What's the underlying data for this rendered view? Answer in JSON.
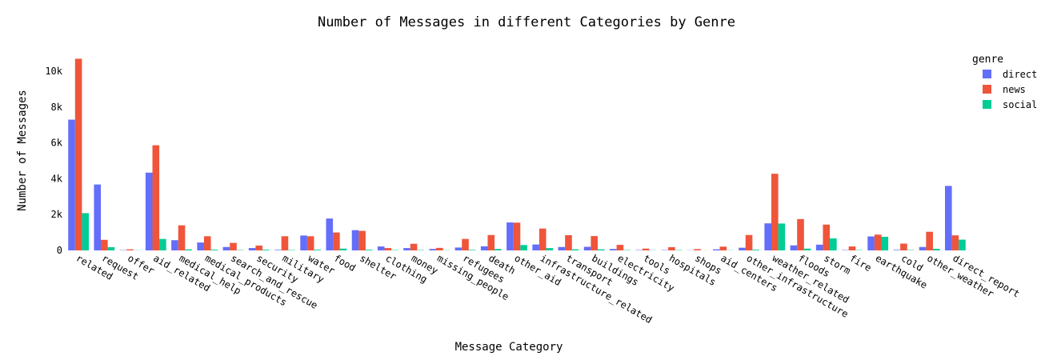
{
  "chart_data": {
    "type": "bar",
    "title": "Number of Messages in different Categories by Genre",
    "xlabel": "Message Category",
    "ylabel": "Number of Messages",
    "ylim": [
      0,
      11300
    ],
    "yticks": [
      0,
      2000,
      4000,
      6000,
      8000,
      10000
    ],
    "ytick_labels": [
      "0",
      "2k",
      "4k",
      "6k",
      "8k",
      "10k"
    ],
    "legend_title": "genre",
    "legend_position": "top-right",
    "grid": false,
    "categories": [
      "related",
      "request",
      "offer",
      "aid_related",
      "medical_help",
      "medical_products",
      "search_and_rescue",
      "security",
      "military",
      "water",
      "food",
      "shelter",
      "clothing",
      "money",
      "missing_people",
      "refugees",
      "death",
      "other_aid",
      "infrastructure_related",
      "transport",
      "buildings",
      "electricity",
      "tools",
      "hospitals",
      "shops",
      "aid_centers",
      "other_infrastructure",
      "weather_related",
      "floods",
      "storm",
      "fire",
      "earthquake",
      "cold",
      "other_weather",
      "direct_report"
    ],
    "series": [
      {
        "name": "direct",
        "color": "#636efa",
        "values": [
          7300,
          3680,
          20,
          4340,
          570,
          440,
          190,
          130,
          30,
          830,
          1780,
          1130,
          220,
          130,
          80,
          160,
          230,
          1560,
          330,
          190,
          200,
          80,
          20,
          20,
          10,
          60,
          150,
          1510,
          280,
          320,
          20,
          780,
          30,
          190,
          3600
        ]
      },
      {
        "name": "news",
        "color": "#ef553b",
        "values": [
          10700,
          590,
          60,
          5870,
          1400,
          790,
          420,
          270,
          790,
          790,
          1000,
          1090,
          130,
          370,
          140,
          640,
          860,
          1550,
          1220,
          850,
          800,
          310,
          100,
          180,
          70,
          210,
          860,
          4280,
          1750,
          1440,
          220,
          880,
          380,
          1040,
          840
        ]
      },
      {
        "name": "social",
        "color": "#00cc96",
        "values": [
          2080,
          180,
          10,
          640,
          60,
          40,
          20,
          40,
          20,
          40,
          100,
          40,
          20,
          20,
          10,
          30,
          80,
          300,
          130,
          60,
          60,
          20,
          10,
          20,
          5,
          10,
          40,
          1500,
          100,
          670,
          20,
          760,
          20,
          90,
          600
        ]
      }
    ]
  }
}
